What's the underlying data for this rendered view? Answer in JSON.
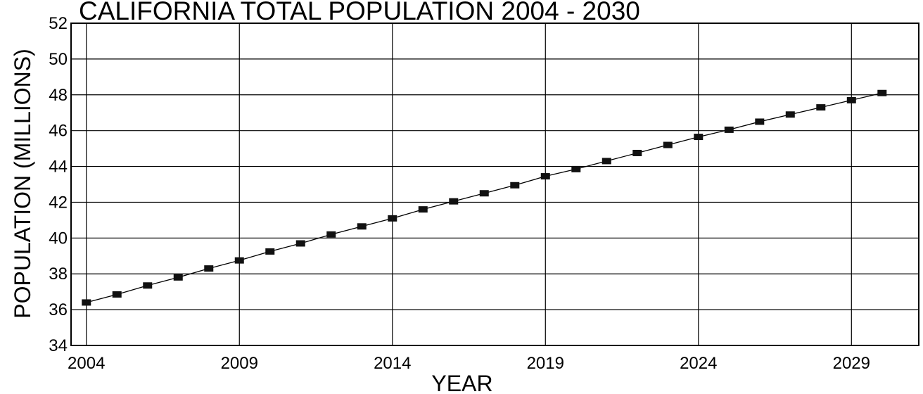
{
  "chart_data": {
    "type": "line",
    "title": "CALIFORNIA TOTAL POPULATION 2004 - 2030",
    "xlabel": "YEAR",
    "ylabel": "POPULATION (MILLIONS)",
    "xlim": [
      2003.5,
      2031.2
    ],
    "ylim": [
      34,
      52
    ],
    "x_ticks": [
      2004,
      2009,
      2014,
      2019,
      2024,
      2029
    ],
    "y_ticks": [
      34,
      36,
      38,
      40,
      42,
      44,
      46,
      48,
      50,
      52
    ],
    "grid": true,
    "legend": "none",
    "marker": "square",
    "series": [
      {
        "x": [
          2004,
          2005,
          2006,
          2007,
          2008,
          2009,
          2010,
          2011,
          2012,
          2013,
          2014,
          2015,
          2016,
          2017,
          2018,
          2019,
          2020,
          2021,
          2022,
          2023,
          2024,
          2025,
          2026,
          2027,
          2028,
          2029,
          2030
        ],
        "values": [
          36.4,
          36.85,
          37.35,
          37.8,
          38.3,
          38.75,
          39.25,
          39.7,
          40.2,
          40.65,
          41.1,
          41.6,
          42.05,
          42.5,
          42.95,
          43.45,
          43.85,
          44.3,
          44.75,
          45.2,
          45.65,
          46.05,
          46.5,
          46.9,
          47.3,
          47.7,
          48.1
        ]
      }
    ],
    "colors": {
      "line": "#000000",
      "marker": "#111111",
      "grid": "#000000"
    }
  }
}
